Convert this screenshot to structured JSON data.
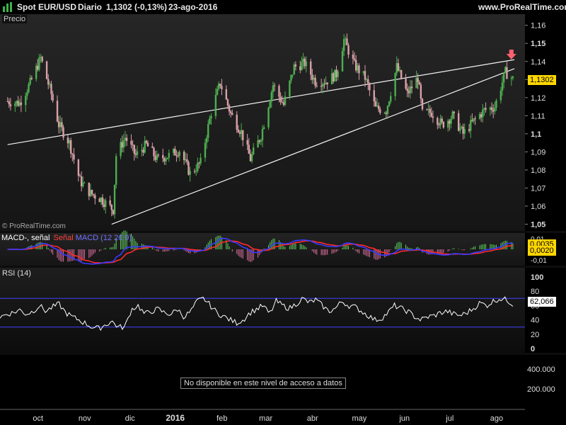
{
  "header": {
    "instrument": "Spot EUR/USD",
    "period": "Diario",
    "last": "1,1302 (-0,13%)",
    "date": "23-ago-2016",
    "site": "www.ProRealTime.com"
  },
  "price_panel": {
    "label": "Precio",
    "copyright": "© ProRealTime.com",
    "last_badge": "1,1302"
  },
  "macd_panel": {
    "legend": [
      "MACD-, señal",
      "Señal",
      "MACD (12 26 9)"
    ],
    "badge1": "0,0035",
    "badge2": "0,0020"
  },
  "rsi_panel": {
    "label": "RSI (14)",
    "badge": "62,066"
  },
  "volume_panel": {
    "message": "No disponible en este nivel de acceso a datos"
  },
  "colors": {
    "up": "#4caf50",
    "down": "#d9a0a8",
    "macd": "#3a3aff",
    "signal": "#ff2a2a",
    "rsi_band": "#4040ff",
    "arrow": "#ff6070",
    "badge": "#ffd700"
  },
  "chart_data": [
    {
      "type": "candlestick",
      "title": "Spot EUR/USD Diario",
      "x_ticks": [
        "oct",
        "nov",
        "dic",
        "2016",
        "feb",
        "mar",
        "abr",
        "may",
        "jun",
        "jul",
        "ago"
      ],
      "y_ticks": [
        "1,16",
        "1,15",
        "1,14",
        "1,13",
        "1,12",
        "1,11",
        "1,1",
        "1,09",
        "1,08",
        "1,07",
        "1,06",
        "1,05"
      ],
      "ylim": [
        1.05,
        1.165
      ],
      "close_series": [
        {
          "date": "2015-09-23",
          "value": 1.118
        },
        {
          "date": "2015-10-01",
          "value": 1.117
        },
        {
          "date": "2015-10-08",
          "value": 1.128
        },
        {
          "date": "2015-10-15",
          "value": 1.142
        },
        {
          "date": "2015-10-22",
          "value": 1.122
        },
        {
          "date": "2015-10-27",
          "value": 1.105
        },
        {
          "date": "2015-11-03",
          "value": 1.095
        },
        {
          "date": "2015-11-10",
          "value": 1.074
        },
        {
          "date": "2015-11-17",
          "value": 1.067
        },
        {
          "date": "2015-11-24",
          "value": 1.064
        },
        {
          "date": "2015-12-02",
          "value": 1.058
        },
        {
          "date": "2015-12-04",
          "value": 1.088
        },
        {
          "date": "2015-12-10",
          "value": 1.098
        },
        {
          "date": "2015-12-17",
          "value": 1.088
        },
        {
          "date": "2015-12-24",
          "value": 1.094
        },
        {
          "date": "2015-12-31",
          "value": 1.086
        },
        {
          "date": "2016-01-08",
          "value": 1.088
        },
        {
          "date": "2016-01-15",
          "value": 1.091
        },
        {
          "date": "2016-01-22",
          "value": 1.078
        },
        {
          "date": "2016-01-29",
          "value": 1.084
        },
        {
          "date": "2016-02-05",
          "value": 1.112
        },
        {
          "date": "2016-02-11",
          "value": 1.128
        },
        {
          "date": "2016-02-18",
          "value": 1.111
        },
        {
          "date": "2016-02-25",
          "value": 1.101
        },
        {
          "date": "2016-03-02",
          "value": 1.086
        },
        {
          "date": "2016-03-09",
          "value": 1.099
        },
        {
          "date": "2016-03-17",
          "value": 1.127
        },
        {
          "date": "2016-03-24",
          "value": 1.116
        },
        {
          "date": "2016-03-31",
          "value": 1.137
        },
        {
          "date": "2016-04-07",
          "value": 1.139
        },
        {
          "date": "2016-04-14",
          "value": 1.129
        },
        {
          "date": "2016-04-21",
          "value": 1.129
        },
        {
          "date": "2016-04-28",
          "value": 1.133
        },
        {
          "date": "2016-05-03",
          "value": 1.152
        },
        {
          "date": "2016-05-10",
          "value": 1.138
        },
        {
          "date": "2016-05-17",
          "value": 1.131
        },
        {
          "date": "2016-05-24",
          "value": 1.114
        },
        {
          "date": "2016-05-31",
          "value": 1.113
        },
        {
          "date": "2016-06-07",
          "value": 1.137
        },
        {
          "date": "2016-06-14",
          "value": 1.122
        },
        {
          "date": "2016-06-21",
          "value": 1.131
        },
        {
          "date": "2016-06-24",
          "value": 1.111
        },
        {
          "date": "2016-06-30",
          "value": 1.112
        },
        {
          "date": "2016-07-07",
          "value": 1.105
        },
        {
          "date": "2016-07-14",
          "value": 1.11
        },
        {
          "date": "2016-07-21",
          "value": 1.1
        },
        {
          "date": "2016-07-28",
          "value": 1.107
        },
        {
          "date": "2016-08-04",
          "value": 1.113
        },
        {
          "date": "2016-08-11",
          "value": 1.115
        },
        {
          "date": "2016-08-18",
          "value": 1.134
        },
        {
          "date": "2016-08-23",
          "value": 1.1302
        }
      ],
      "channel": {
        "upper": [
          {
            "date": "2015-09-23",
            "value": 1.094
          },
          {
            "date": "2016-08-24",
            "value": 1.141
          }
        ],
        "lower": [
          {
            "date": "2015-12-01",
            "value": 1.05
          },
          {
            "date": "2016-08-24",
            "value": 1.136
          }
        ]
      },
      "last_value": 1.1302
    },
    {
      "type": "line",
      "title": "MACD (12 26 9)",
      "y_ticks": [
        "0,01",
        "-0,01"
      ],
      "last_values": {
        "macd": 0.0035,
        "signal": 0.002
      }
    },
    {
      "type": "line",
      "title": "RSI (14)",
      "y_ticks": [
        "100",
        "80",
        "60",
        "40",
        "20",
        "0"
      ],
      "ylim": [
        0,
        100
      ],
      "bands": [
        70,
        30
      ],
      "series": [
        {
          "values": [
            44,
            48,
            50,
            54,
            48,
            52,
            60,
            52,
            58,
            62,
            50,
            44,
            40,
            35,
            30,
            28,
            33,
            38,
            30,
            30,
            55,
            60,
            48,
            52,
            55,
            50,
            48,
            55,
            44,
            52,
            66,
            70,
            60,
            50,
            45,
            40,
            36,
            40,
            50,
            55,
            60,
            48,
            66,
            60,
            56,
            62,
            70,
            64,
            68,
            60,
            52,
            56,
            66,
            60,
            58,
            52,
            46,
            40,
            42,
            50,
            60,
            56,
            52,
            45,
            40,
            44,
            46,
            50,
            52,
            48,
            46,
            50,
            56,
            64,
            60,
            66,
            70,
            68,
            62
          ]
        }
      ],
      "last_value": 62.066
    },
    {
      "type": "bar",
      "title": "",
      "y_ticks": [
        "400.000",
        "200.000"
      ]
    }
  ]
}
